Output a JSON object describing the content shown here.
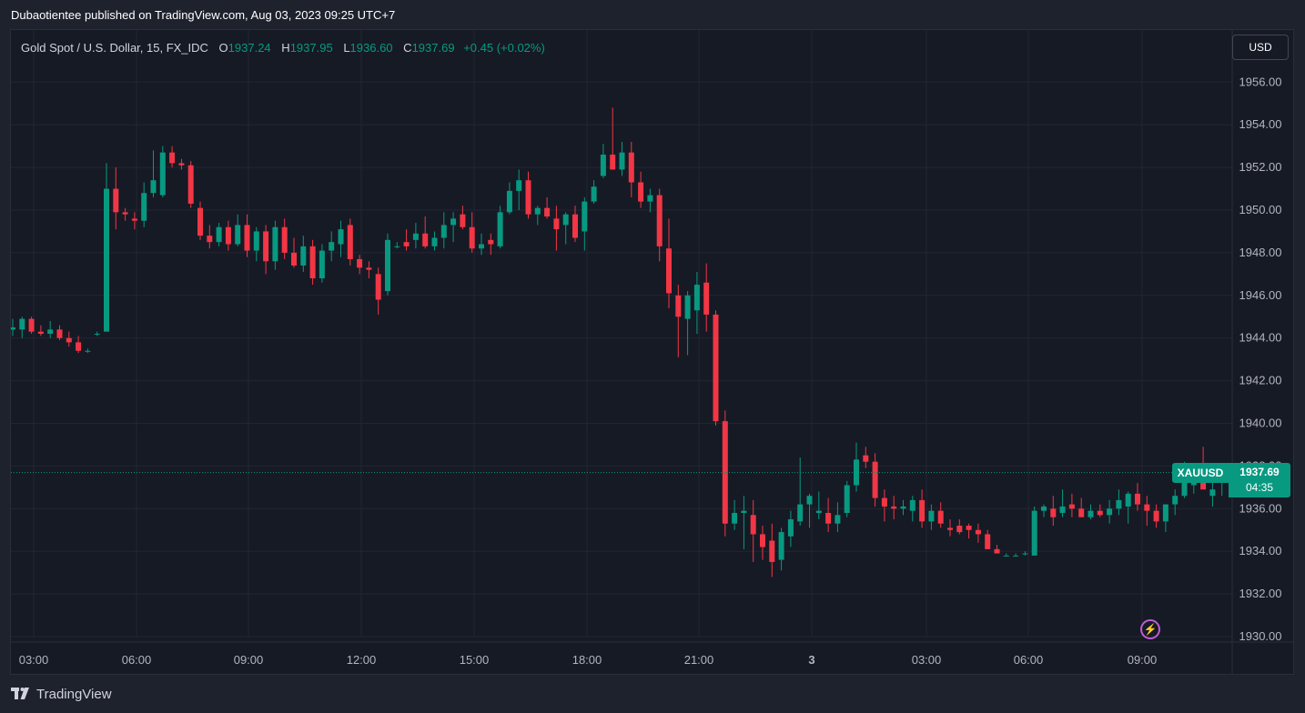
{
  "header": {
    "publisher_line": "Dubaotientee published on TradingView.com, Aug 03, 2023 09:25 UTC+7"
  },
  "legend": {
    "symbol": "Gold Spot / U.S. Dollar, 15, FX_IDC",
    "o_label": "O",
    "o_value": "1937.24",
    "h_label": "H",
    "h_value": "1937.95",
    "l_label": "L",
    "l_value": "1936.60",
    "c_label": "C",
    "c_value": "1937.69",
    "change": "+0.45 (+0.02%)"
  },
  "currency_button": "USD",
  "price_tag": {
    "symbol": "XAUUSD",
    "price": "1937.69",
    "countdown": "04:35"
  },
  "footer": {
    "brand": "TradingView"
  },
  "colors": {
    "up": "#089981",
    "down": "#f23645",
    "background": "#161a25",
    "grid": "#232632",
    "accent_icon": "#c05bd6"
  },
  "icons": {
    "flash": "lightning-icon",
    "logo": "tradingview-logo-icon"
  },
  "chart_data": {
    "type": "candlestick",
    "title": "Gold Spot / U.S. Dollar, 15, FX_IDC",
    "ylim": [
      1929,
      1958.5
    ],
    "ytick_values": [
      1930,
      1932,
      1934,
      1936,
      1938,
      1940,
      1942,
      1944,
      1946,
      1948,
      1950,
      1952,
      1954,
      1956
    ],
    "ytick_labels": [
      "1930.00",
      "1932.00",
      "1934.00",
      "1936.00",
      "1938.00",
      "1940.00",
      "1942.00",
      "1944.00",
      "1946.00",
      "1948.00",
      "1950.00",
      "1952.00",
      "1954.00",
      "1956.00"
    ],
    "xtick_labels": [
      "03:00",
      "06:00",
      "09:00",
      "12:00",
      "15:00",
      "18:00",
      "21:00",
      "3",
      "03:00",
      "06:00",
      "09:00"
    ],
    "xtick_bold": [
      false,
      false,
      false,
      false,
      false,
      false,
      false,
      true,
      false,
      false,
      false
    ],
    "last_price": 1937.69,
    "grid": true,
    "candles": [
      [
        1944.4,
        1944.9,
        1944.1,
        1944.5
      ],
      [
        1944.4,
        1945.0,
        1944.0,
        1944.9
      ],
      [
        1944.9,
        1945.0,
        1944.2,
        1944.3
      ],
      [
        1944.3,
        1944.6,
        1944.1,
        1944.2
      ],
      [
        1944.2,
        1944.8,
        1944.0,
        1944.4
      ],
      [
        1944.4,
        1944.6,
        1943.9,
        1944.0
      ],
      [
        1944.0,
        1944.3,
        1943.6,
        1943.8
      ],
      [
        1943.8,
        1944.1,
        1943.3,
        1943.4
      ],
      [
        1943.4,
        1943.5,
        1943.3,
        1943.4
      ],
      [
        1944.2,
        1944.3,
        1944.1,
        1944.2
      ],
      [
        1944.3,
        1952.2,
        1944.3,
        1951.0
      ],
      [
        1951.0,
        1952.0,
        1949.1,
        1949.9
      ],
      [
        1949.9,
        1950.1,
        1949.5,
        1949.8
      ],
      [
        1949.6,
        1949.9,
        1949.1,
        1949.5
      ],
      [
        1949.5,
        1951.3,
        1949.2,
        1950.8
      ],
      [
        1950.8,
        1952.8,
        1950.6,
        1951.4
      ],
      [
        1950.7,
        1953.0,
        1950.6,
        1952.7
      ],
      [
        1952.7,
        1953.0,
        1952.0,
        1952.2
      ],
      [
        1952.2,
        1952.4,
        1951.9,
        1952.1
      ],
      [
        1952.1,
        1952.3,
        1950.1,
        1950.3
      ],
      [
        1950.1,
        1950.4,
        1948.6,
        1948.8
      ],
      [
        1948.8,
        1949.3,
        1948.2,
        1948.5
      ],
      [
        1948.5,
        1949.4,
        1948.3,
        1949.2
      ],
      [
        1949.2,
        1949.5,
        1948.1,
        1948.4
      ],
      [
        1948.4,
        1949.8,
        1948.3,
        1949.3
      ],
      [
        1949.3,
        1949.8,
        1947.8,
        1948.1
      ],
      [
        1948.1,
        1949.2,
        1947.6,
        1949.0
      ],
      [
        1949.0,
        1949.3,
        1947.0,
        1947.6
      ],
      [
        1947.6,
        1949.5,
        1947.2,
        1949.2
      ],
      [
        1949.2,
        1949.6,
        1947.7,
        1948.0
      ],
      [
        1948.0,
        1948.7,
        1947.3,
        1947.4
      ],
      [
        1947.4,
        1948.8,
        1947.1,
        1948.3
      ],
      [
        1948.3,
        1948.6,
        1946.5,
        1946.8
      ],
      [
        1946.8,
        1948.4,
        1946.6,
        1948.1
      ],
      [
        1948.1,
        1949.0,
        1947.6,
        1948.5
      ],
      [
        1948.4,
        1949.5,
        1947.8,
        1949.1
      ],
      [
        1949.3,
        1949.6,
        1947.4,
        1947.7
      ],
      [
        1947.7,
        1947.9,
        1947.0,
        1947.3
      ],
      [
        1947.3,
        1947.6,
        1946.8,
        1947.2
      ],
      [
        1947.0,
        1947.3,
        1945.1,
        1945.8
      ],
      [
        1946.2,
        1948.9,
        1946.0,
        1948.6
      ],
      [
        1948.3,
        1948.5,
        1948.2,
        1948.3
      ],
      [
        1948.5,
        1949.1,
        1948.1,
        1948.3
      ],
      [
        1948.6,
        1949.4,
        1948.2,
        1948.9
      ],
      [
        1948.9,
        1949.7,
        1948.2,
        1948.3
      ],
      [
        1948.3,
        1949.0,
        1948.1,
        1948.7
      ],
      [
        1948.7,
        1949.9,
        1948.2,
        1949.3
      ],
      [
        1949.3,
        1949.9,
        1948.5,
        1949.6
      ],
      [
        1949.8,
        1950.2,
        1949.1,
        1949.2
      ],
      [
        1949.2,
        1949.9,
        1948.0,
        1948.2
      ],
      [
        1948.2,
        1948.9,
        1947.9,
        1948.4
      ],
      [
        1948.6,
        1948.9,
        1947.9,
        1948.4
      ],
      [
        1948.3,
        1950.2,
        1948.2,
        1949.9
      ],
      [
        1949.9,
        1951.3,
        1949.8,
        1950.9
      ],
      [
        1950.9,
        1951.9,
        1950.0,
        1951.4
      ],
      [
        1951.4,
        1951.8,
        1949.6,
        1949.8
      ],
      [
        1949.8,
        1950.2,
        1949.3,
        1950.1
      ],
      [
        1950.1,
        1950.6,
        1949.6,
        1949.7
      ],
      [
        1949.6,
        1950.2,
        1948.1,
        1949.1
      ],
      [
        1949.3,
        1949.9,
        1948.4,
        1949.8
      ],
      [
        1949.8,
        1950.2,
        1948.5,
        1948.7
      ],
      [
        1949.0,
        1950.6,
        1948.1,
        1950.4
      ],
      [
        1950.4,
        1951.4,
        1950.3,
        1951.1
      ],
      [
        1951.6,
        1953.1,
        1951.5,
        1952.6
      ],
      [
        1952.6,
        1954.8,
        1951.9,
        1951.9
      ],
      [
        1951.9,
        1953.2,
        1951.6,
        1952.7
      ],
      [
        1952.7,
        1953.2,
        1950.6,
        1951.3
      ],
      [
        1951.3,
        1951.8,
        1950.1,
        1950.4
      ],
      [
        1950.4,
        1951.0,
        1949.9,
        1950.7
      ],
      [
        1950.7,
        1951.0,
        1947.6,
        1948.3
      ],
      [
        1948.2,
        1949.6,
        1945.4,
        1946.1
      ],
      [
        1946.0,
        1946.5,
        1943.1,
        1945.0
      ],
      [
        1944.9,
        1946.2,
        1943.2,
        1946.0
      ],
      [
        1945.3,
        1947.1,
        1944.2,
        1946.5
      ],
      [
        1946.6,
        1947.5,
        1944.3,
        1945.1
      ],
      [
        1945.1,
        1945.3,
        1939.9,
        1940.1
      ],
      [
        1940.1,
        1940.6,
        1934.7,
        1935.3
      ],
      [
        1935.3,
        1936.4,
        1935.0,
        1935.8
      ],
      [
        1935.8,
        1936.6,
        1934.1,
        1935.9
      ],
      [
        1935.7,
        1936.4,
        1933.5,
        1934.8
      ],
      [
        1934.8,
        1935.2,
        1933.6,
        1934.2
      ],
      [
        1934.5,
        1935.3,
        1932.8,
        1933.5
      ],
      [
        1933.6,
        1935.1,
        1933.1,
        1934.9
      ],
      [
        1934.7,
        1935.9,
        1934.2,
        1935.5
      ],
      [
        1935.4,
        1938.4,
        1935.2,
        1936.2
      ],
      [
        1936.2,
        1936.7,
        1935.1,
        1936.6
      ],
      [
        1935.8,
        1936.8,
        1935.5,
        1935.9
      ],
      [
        1935.8,
        1936.5,
        1934.9,
        1935.3
      ],
      [
        1935.3,
        1936.3,
        1934.9,
        1935.7
      ],
      [
        1935.8,
        1937.3,
        1935.6,
        1937.1
      ],
      [
        1937.1,
        1939.1,
        1936.8,
        1938.3
      ],
      [
        1938.5,
        1938.9,
        1937.9,
        1938.2
      ],
      [
        1938.2,
        1938.6,
        1936.1,
        1936.5
      ],
      [
        1936.5,
        1936.9,
        1935.4,
        1936.1
      ],
      [
        1936.1,
        1936.6,
        1935.5,
        1936.0
      ],
      [
        1936.0,
        1936.4,
        1935.7,
        1936.1
      ],
      [
        1935.9,
        1936.6,
        1935.4,
        1936.4
      ],
      [
        1936.4,
        1936.9,
        1935.1,
        1935.4
      ],
      [
        1935.4,
        1936.2,
        1935.0,
        1935.9
      ],
      [
        1935.9,
        1936.3,
        1935.1,
        1935.3
      ],
      [
        1935.1,
        1935.5,
        1934.7,
        1935.0
      ],
      [
        1935.2,
        1935.5,
        1934.8,
        1934.9
      ],
      [
        1935.2,
        1935.3,
        1934.6,
        1935.0
      ],
      [
        1935.0,
        1935.3,
        1934.4,
        1934.8
      ],
      [
        1934.8,
        1935.0,
        1934.1,
        1934.1
      ],
      [
        1934.1,
        1934.3,
        1933.9,
        1933.9
      ],
      [
        1933.8,
        1933.9,
        1933.8,
        1933.8
      ],
      [
        1933.8,
        1933.9,
        1933.8,
        1933.8
      ],
      [
        1933.9,
        1934.0,
        1933.8,
        1933.9
      ],
      [
        1933.8,
        1936.1,
        1933.8,
        1935.9
      ],
      [
        1935.9,
        1936.2,
        1935.6,
        1936.1
      ],
      [
        1936.0,
        1936.6,
        1935.2,
        1935.6
      ],
      [
        1935.8,
        1936.9,
        1935.6,
        1936.1
      ],
      [
        1936.2,
        1936.7,
        1935.6,
        1936.0
      ],
      [
        1936.0,
        1936.5,
        1935.6,
        1935.6
      ],
      [
        1935.6,
        1936.2,
        1935.5,
        1935.9
      ],
      [
        1935.9,
        1936.2,
        1935.6,
        1935.7
      ],
      [
        1935.7,
        1936.4,
        1935.3,
        1936.0
      ],
      [
        1936.0,
        1936.9,
        1935.7,
        1936.4
      ],
      [
        1936.1,
        1936.8,
        1935.3,
        1936.7
      ],
      [
        1936.7,
        1937.2,
        1935.9,
        1936.2
      ],
      [
        1936.2,
        1936.6,
        1935.2,
        1935.9
      ],
      [
        1935.9,
        1936.2,
        1935.1,
        1935.4
      ],
      [
        1935.4,
        1936.2,
        1934.9,
        1936.2
      ],
      [
        1936.2,
        1936.9,
        1935.7,
        1936.6
      ],
      [
        1936.6,
        1938.2,
        1936.5,
        1937.5
      ],
      [
        1937.1,
        1937.9,
        1936.7,
        1937.7
      ],
      [
        1937.8,
        1938.9,
        1936.9,
        1936.9
      ],
      [
        1936.6,
        1937.4,
        1936.1,
        1936.9
      ],
      [
        1937.24,
        1937.95,
        1936.6,
        1937.69
      ]
    ]
  }
}
